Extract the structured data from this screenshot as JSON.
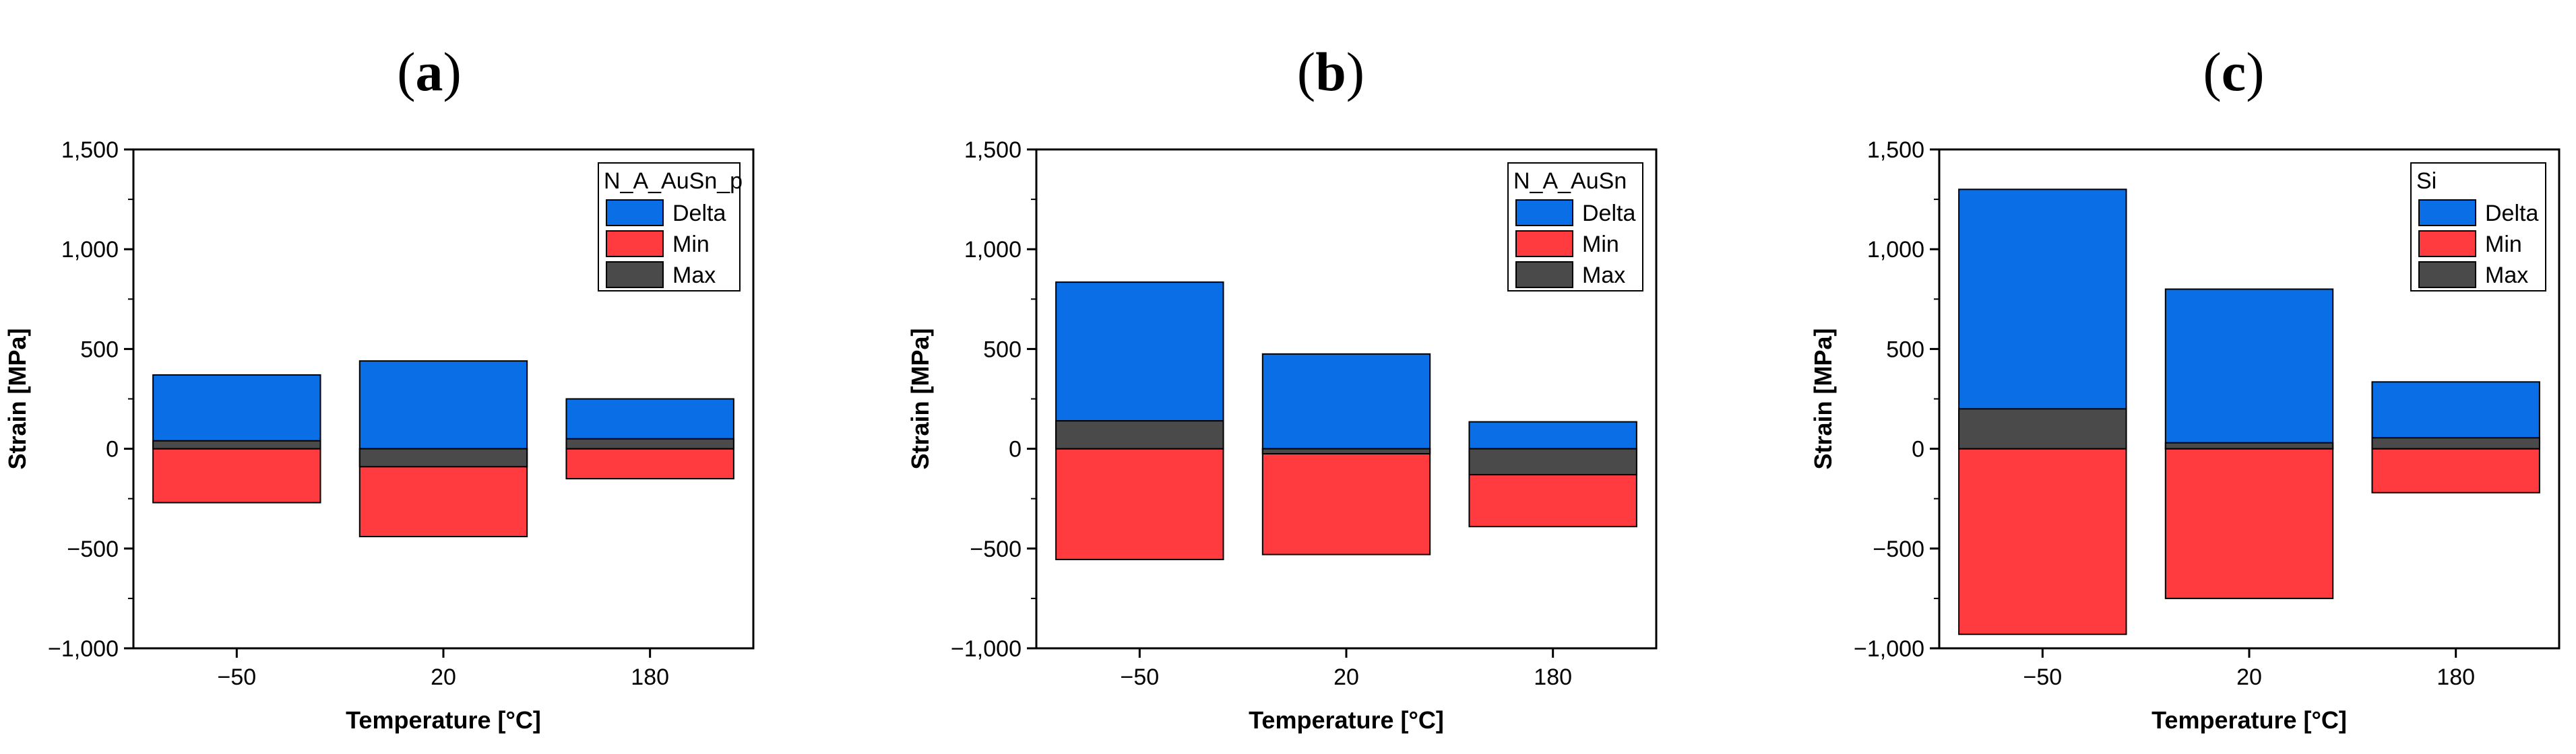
{
  "colors": {
    "delta": "#0a6ee6",
    "min": "#ff3b3f",
    "max": "#4a4a4a",
    "axis": "#000000"
  },
  "chart_data": [
    {
      "panel": "a",
      "panel_paren_open": "(",
      "panel_paren_close": ")",
      "type": "bar",
      "stacking": "overlay",
      "categories": [
        "−50",
        "20",
        "180"
      ],
      "xlabel": "Temperature [°C]",
      "ylabel": "Strain [MPa]",
      "ylim": [
        -1000,
        1500
      ],
      "yticks": [
        -1000,
        -500,
        0,
        500,
        1000,
        1500
      ],
      "ytick_labels": [
        "−1,000",
        "−500",
        "0",
        "500",
        "1,000",
        "1,500"
      ],
      "legend_title": "N_A_AuSn_p",
      "legend_position": "top-right",
      "series": [
        {
          "name": "Delta",
          "key": "delta",
          "values": [
            370,
            440,
            250
          ]
        },
        {
          "name": "Min",
          "key": "min",
          "values": [
            -270,
            -440,
            -150
          ]
        },
        {
          "name": "Max",
          "key": "max",
          "values": [
            40,
            -90,
            50
          ]
        }
      ]
    },
    {
      "panel": "b",
      "panel_paren_open": "(",
      "panel_paren_close": ")",
      "type": "bar",
      "stacking": "overlay",
      "categories": [
        "−50",
        "20",
        "180"
      ],
      "xlabel": "Temperature [°C]",
      "ylabel": "Strain [MPa]",
      "ylim": [
        -1000,
        1500
      ],
      "yticks": [
        -1000,
        -500,
        0,
        500,
        1000,
        1500
      ],
      "ytick_labels": [
        "−1,000",
        "−500",
        "0",
        "500",
        "1,000",
        "1,500"
      ],
      "legend_title": "N_A_AuSn",
      "legend_position": "top-right",
      "series": [
        {
          "name": "Delta",
          "key": "delta",
          "values": [
            835,
            475,
            135
          ]
        },
        {
          "name": "Min",
          "key": "min",
          "values": [
            -555,
            -530,
            -390
          ]
        },
        {
          "name": "Max",
          "key": "max",
          "values": [
            140,
            -25,
            -130
          ]
        }
      ]
    },
    {
      "panel": "c",
      "panel_paren_open": "(",
      "panel_paren_close": ")",
      "type": "bar",
      "stacking": "overlay",
      "categories": [
        "−50",
        "20",
        "180"
      ],
      "xlabel": "Temperature [°C]",
      "ylabel": "Strain [MPa]",
      "ylim": [
        -1000,
        1500
      ],
      "yticks": [
        -1000,
        -500,
        0,
        500,
        1000,
        1500
      ],
      "ytick_labels": [
        "−1,000",
        "−500",
        "0",
        "500",
        "1,000",
        "1,500"
      ],
      "legend_title": "Si",
      "legend_position": "top-right",
      "series": [
        {
          "name": "Delta",
          "key": "delta",
          "values": [
            1300,
            800,
            335
          ]
        },
        {
          "name": "Min",
          "key": "min",
          "values": [
            -930,
            -750,
            -220
          ]
        },
        {
          "name": "Max",
          "key": "max",
          "values": [
            200,
            30,
            55
          ]
        }
      ]
    }
  ]
}
